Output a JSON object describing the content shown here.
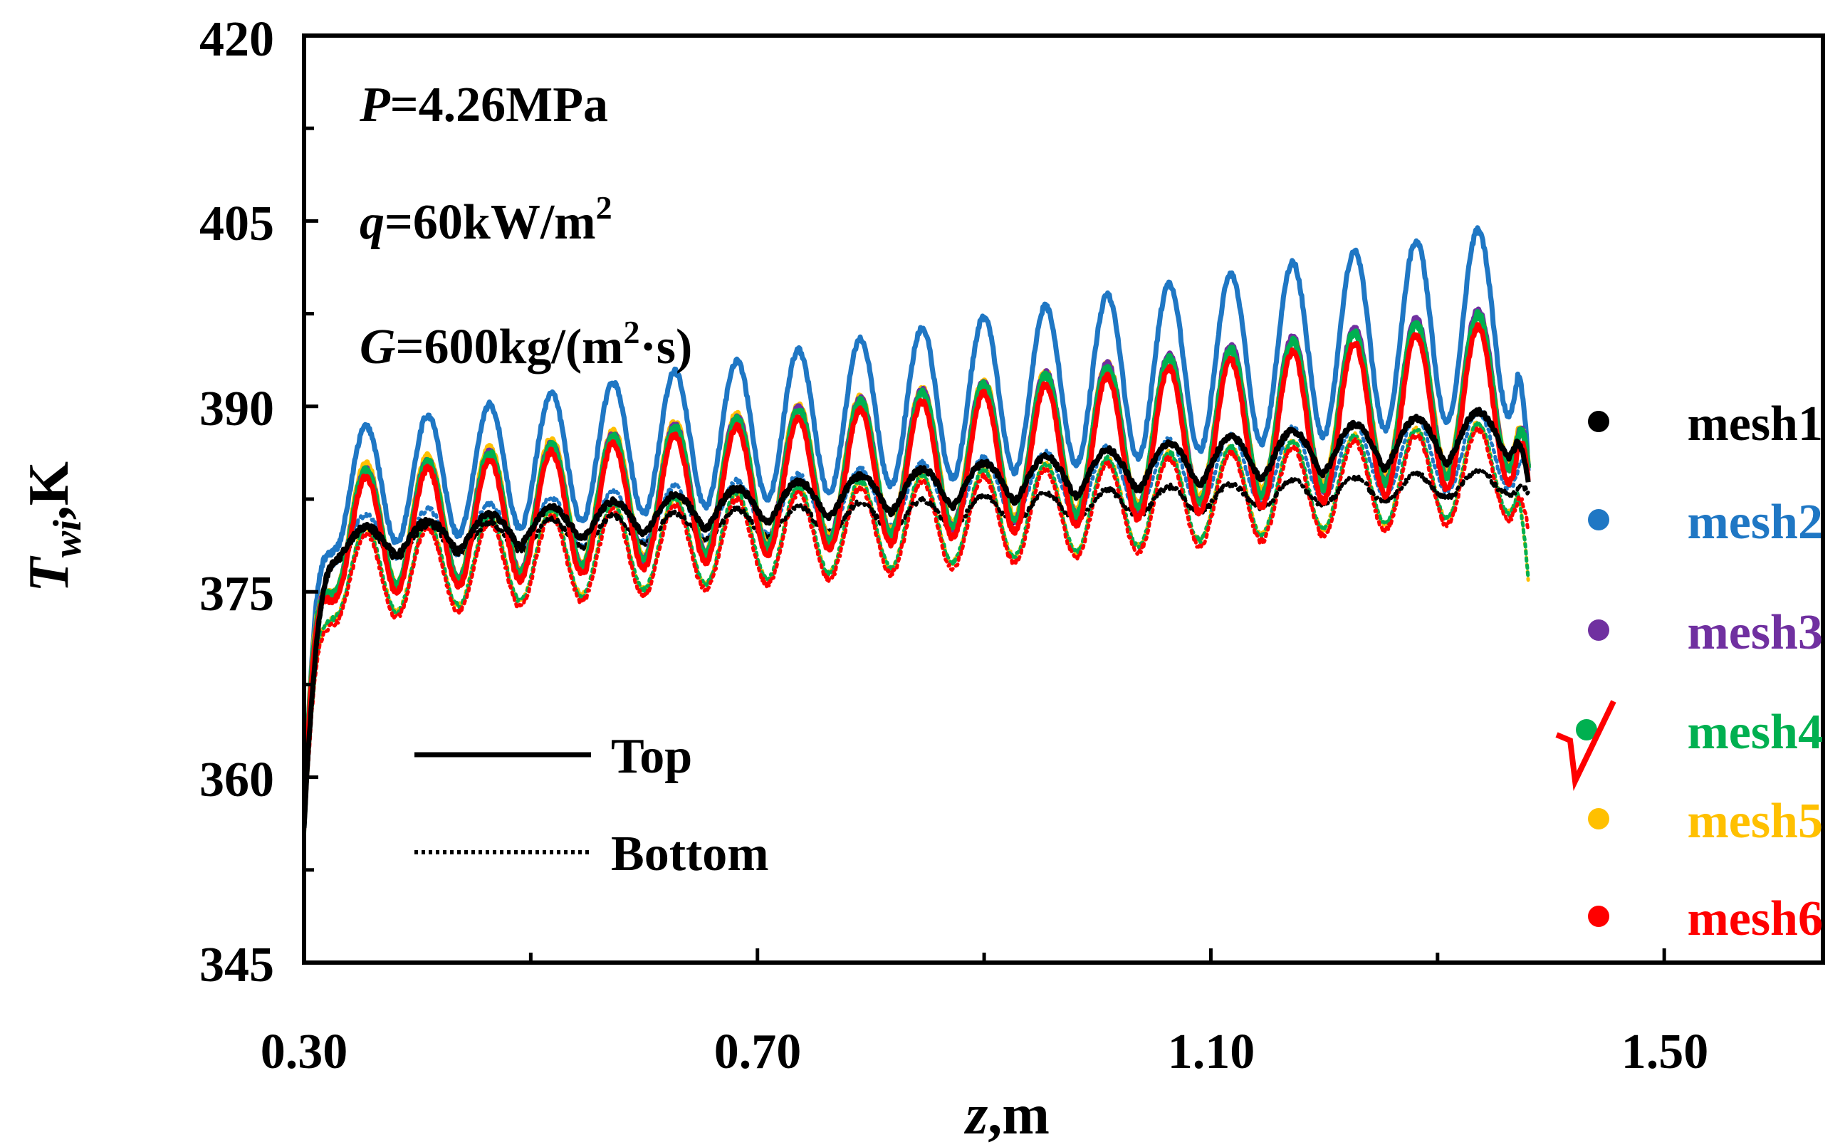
{
  "chart_data": {
    "type": "line",
    "xlabel_var": "z",
    "xlabel_unit": ",m",
    "ylabel_var": "T",
    "ylabel_sub": "wi",
    "ylabel_unit": ",K",
    "xlim": [
      0.3,
      1.64
    ],
    "ylim": [
      345,
      420
    ],
    "xticks": [
      0.3,
      0.7,
      1.1,
      1.5
    ],
    "xtick_labels": [
      "0.30",
      "0.70",
      "1.10",
      "1.50"
    ],
    "xminor": [
      0.5,
      0.9,
      1.3
    ],
    "yticks": [
      345,
      360,
      375,
      390,
      405,
      420
    ],
    "ytick_labels": [
      "345",
      "360",
      "375",
      "390",
      "405",
      "420"
    ],
    "yminor": [
      352.5,
      367.5,
      382.5,
      397.5,
      412.5
    ],
    "annotations": {
      "pressure": {
        "var": "P",
        "text": "=4.26MPa"
      },
      "heat_flux": {
        "var": "q",
        "text": "=60kW/m",
        "sup": "2"
      },
      "mass_flux": {
        "var": "G",
        "text": "=600kg/(m",
        "sup": "2",
        "tail": "·s)"
      }
    },
    "style_legend": {
      "top": "Top",
      "bottom": "Bottom"
    },
    "marker_legend": [
      {
        "name": "mesh1",
        "color": "#000000",
        "selected": false
      },
      {
        "name": "mesh2",
        "color": "#1f77c4",
        "selected": false
      },
      {
        "name": "mesh3",
        "color": "#7030a0",
        "selected": false
      },
      {
        "name": "mesh4",
        "color": "#00b050",
        "selected": true
      },
      {
        "name": "mesh5",
        "color": "#ffc000",
        "selected": false
      },
      {
        "name": "mesh6",
        "color": "#ff0000",
        "selected": false
      }
    ],
    "check_mark_color": "#ff0000",
    "x_start": 0.3,
    "x_end": 1.38,
    "period": 0.0545,
    "series": [
      {
        "name": "mesh2",
        "position": "Top",
        "color": "#1f77c4",
        "style": "solid",
        "width": 7,
        "start": 356,
        "rise_end": 0.33,
        "trough": [
          378.5,
          389.5
        ],
        "peak": [
          388.0,
          405.0
        ],
        "shape": "smooth",
        "end": 385
      },
      {
        "name": "mesh2",
        "position": "Bottom",
        "color": "#1f77c4",
        "style": "dotted",
        "width": 6,
        "start": 356,
        "rise_end": 0.33,
        "trough": [
          377.5,
          383.5
        ],
        "peak": [
          381.0,
          390.0
        ],
        "shape": "smooth",
        "end": 385
      },
      {
        "name": "mesh5",
        "position": "Bottom",
        "color": "#ffc000",
        "style": "dotted",
        "width": 6,
        "start": 355,
        "rise_end": 0.33,
        "trough": [
          373.0,
          381.5
        ],
        "peak": [
          380.0,
          389.0
        ],
        "shape": "smooth",
        "end": 376
      },
      {
        "name": "mesh4",
        "position": "Bottom",
        "color": "#00b050",
        "style": "dotted",
        "width": 6,
        "start": 355,
        "rise_end": 0.33,
        "trough": [
          373.0,
          381.5
        ],
        "peak": [
          380.0,
          389.0
        ],
        "shape": "smooth",
        "end": 376
      },
      {
        "name": "mesh6",
        "position": "Bottom",
        "color": "#ff0000",
        "style": "dotted",
        "width": 6,
        "start": 355,
        "rise_end": 0.33,
        "trough": [
          372.5,
          381.0
        ],
        "peak": [
          379.5,
          388.5
        ],
        "shape": "smooth",
        "end": 380
      },
      {
        "name": "mesh1",
        "position": "Bottom",
        "color": "#000000",
        "style": "dotted",
        "width": 6,
        "start": 355,
        "rise_end": 0.33,
        "trough": [
          377.5,
          383.0
        ],
        "peak": [
          380.0,
          385.0
        ],
        "shape": "smooth",
        "end": 383
      },
      {
        "name": "mesh5",
        "position": "Top",
        "color": "#ffc000",
        "style": "solid",
        "width": 8,
        "start": 357,
        "rise_end": 0.33,
        "trough": [
          375.0,
          385.5
        ],
        "peak": [
          385.0,
          398.0
        ],
        "shape": "smooth",
        "end": 385
      },
      {
        "name": "mesh3",
        "position": "Top",
        "color": "#7030a0",
        "style": "solid",
        "width": 8,
        "start": 357,
        "rise_end": 0.33,
        "trough": [
          375.0,
          385.0
        ],
        "peak": [
          384.5,
          398.3
        ],
        "shape": "smooth",
        "end": 385
      },
      {
        "name": "mesh4",
        "position": "Top",
        "color": "#00b050",
        "style": "solid",
        "width": 8,
        "start": 357,
        "rise_end": 0.33,
        "trough": [
          375.0,
          385.0
        ],
        "peak": [
          384.5,
          398.0
        ],
        "shape": "smooth",
        "end": 385
      },
      {
        "name": "mesh6",
        "position": "Top",
        "color": "#ff0000",
        "style": "solid",
        "width": 7,
        "start": 357,
        "rise_end": 0.33,
        "trough": [
          374.5,
          384.0
        ],
        "peak": [
          384.0,
          397.0
        ],
        "shape": "smooth",
        "end": 384
      },
      {
        "name": "mesh1",
        "position": "Top",
        "color": "#000000",
        "style": "solid",
        "width": 7,
        "start": 356,
        "rise_end": 0.33,
        "trough": [
          377.5,
          386.0
        ],
        "peak": [
          380.0,
          390.0
        ],
        "shape": "flat",
        "end": 384
      }
    ]
  }
}
